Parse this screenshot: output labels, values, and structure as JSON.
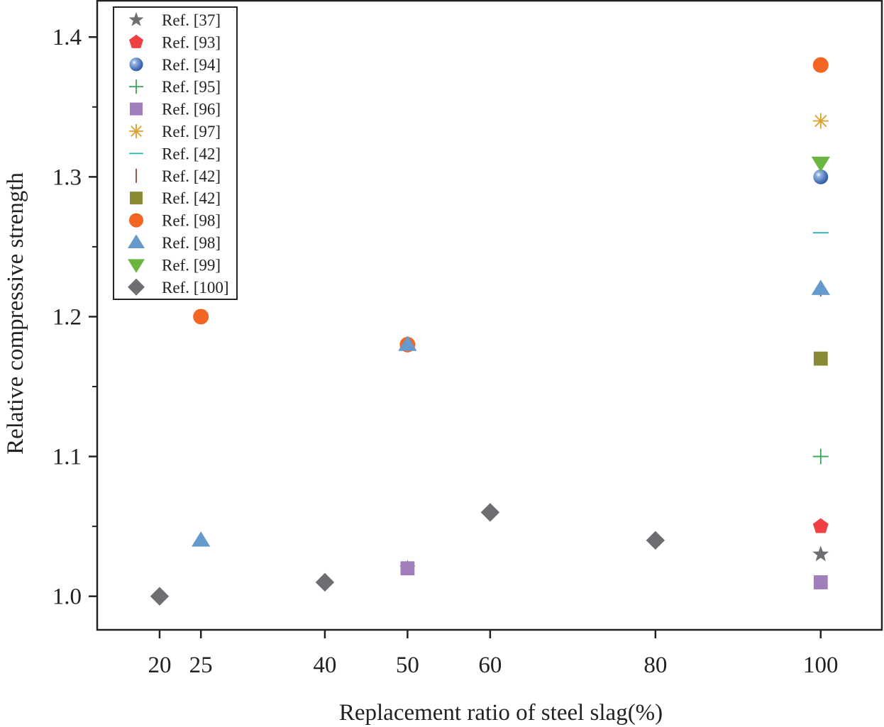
{
  "chart_data": {
    "type": "scatter",
    "xlabel": "Replacement ratio of steel slag(%)",
    "ylabel": "Relative compressive strength",
    "xlim": [
      12.45,
      107.4
    ],
    "ylim": [
      0.976,
      1.426
    ],
    "xticks": [
      20,
      25,
      40,
      50,
      60,
      80,
      100
    ],
    "yticks": [
      1.0,
      1.1,
      1.2,
      1.3,
      1.4
    ],
    "yticks_minor": [
      1.05,
      1.15,
      1.25,
      1.35
    ],
    "grid": false,
    "legend_position": "top-left",
    "series": [
      {
        "name": "Ref. [37]",
        "marker": "star",
        "color": "#6d6e71",
        "points": [
          [
            50,
            1.02
          ],
          [
            100,
            1.03
          ]
        ]
      },
      {
        "name": "Ref. [93]",
        "marker": "pentagon",
        "color": "#ef4043",
        "points": [
          [
            100,
            1.05
          ]
        ]
      },
      {
        "name": "Ref. [94]",
        "marker": "sphere",
        "color": "#3b66b0",
        "points": [
          [
            100,
            1.3
          ]
        ]
      },
      {
        "name": "Ref. [95]",
        "marker": "plus",
        "color": "#3aa65a",
        "points": [
          [
            100,
            1.1
          ]
        ]
      },
      {
        "name": "Ref. [96]",
        "marker": "square",
        "color": "#a07ebb",
        "points": [
          [
            50,
            1.02
          ],
          [
            100,
            1.01
          ]
        ]
      },
      {
        "name": "Ref. [97]",
        "marker": "asterisk",
        "color": "#d9a030",
        "points": [
          [
            100,
            1.34
          ]
        ]
      },
      {
        "name": "Ref. [42]",
        "marker": "hline",
        "color": "#2bb0b5",
        "points": [
          [
            100,
            1.26
          ]
        ]
      },
      {
        "name": "Ref. [42]",
        "marker": "vline",
        "color": "#8b4a4a",
        "points": [
          [
            100,
            1.22
          ]
        ]
      },
      {
        "name": "Ref. [42]",
        "marker": "square",
        "color": "#8a8a35",
        "points": [
          [
            100,
            1.17
          ]
        ]
      },
      {
        "name": "Ref. [98]",
        "marker": "circle",
        "color": "#f26522",
        "points": [
          [
            25,
            1.2
          ],
          [
            50,
            1.18
          ],
          [
            100,
            1.38
          ]
        ]
      },
      {
        "name": "Ref. [98]",
        "marker": "triangle-up",
        "color": "#6699cc",
        "points": [
          [
            25,
            1.04
          ],
          [
            50,
            1.18
          ],
          [
            100,
            1.22
          ]
        ]
      },
      {
        "name": "Ref. [99]",
        "marker": "triangle-down",
        "color": "#6bb643",
        "points": [
          [
            100,
            1.31
          ]
        ]
      },
      {
        "name": "Ref. [100]",
        "marker": "diamond",
        "color": "#6d6e71",
        "points": [
          [
            20,
            1.0
          ],
          [
            40,
            1.01
          ],
          [
            60,
            1.06
          ],
          [
            80,
            1.04
          ]
        ]
      }
    ]
  }
}
